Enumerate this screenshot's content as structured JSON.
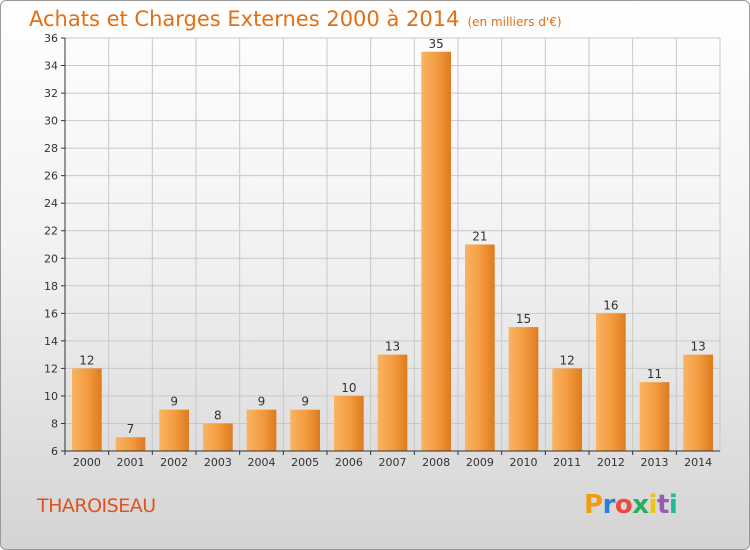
{
  "header": {
    "title": "Achats et Charges Externes 2000 à 2014",
    "subtitle": "(en milliers d'€)"
  },
  "footer": {
    "commune": "THAROISEAU",
    "brand": "Proxiti",
    "brand_colors": [
      "#f39c12",
      "#2b7fd0",
      "#e74c3c",
      "#27ae60",
      "#f1c40f",
      "#9b59b6",
      "#1abc9c"
    ]
  },
  "colors": {
    "accent": "#e36f12",
    "bar_light": "#f7a54c",
    "bar_dark": "#e07a1c",
    "grid": "#c8c8c8",
    "commune": "#e0531d"
  },
  "chart_data": {
    "type": "bar",
    "categories": [
      "2000",
      "2001",
      "2002",
      "2003",
      "2004",
      "2005",
      "2006",
      "2007",
      "2008",
      "2009",
      "2010",
      "2011",
      "2012",
      "2013",
      "2014"
    ],
    "values": [
      12,
      7,
      9,
      8,
      9,
      9,
      10,
      13,
      35,
      21,
      15,
      12,
      16,
      11,
      13
    ],
    "title": "Achats et Charges Externes 2000 à 2014",
    "subtitle": "(en milliers d'€)",
    "xlabel": "",
    "ylabel": "",
    "ylim": [
      6,
      36
    ],
    "yticks": [
      6,
      8,
      10,
      12,
      14,
      16,
      18,
      20,
      22,
      24,
      26,
      28,
      30,
      32,
      34,
      36
    ],
    "grid": true,
    "legend": "none"
  }
}
